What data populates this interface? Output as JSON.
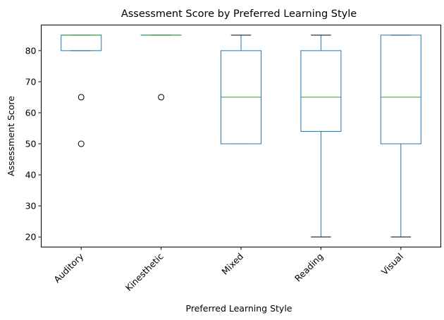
{
  "chart_data": {
    "type": "boxplot",
    "title": "Assessment Score by Preferred Learning Style",
    "xlabel": "Preferred Learning Style",
    "ylabel": "Assessment Score",
    "ylim": [
      16.75,
      88.25
    ],
    "yticks": [
      20,
      30,
      40,
      50,
      60,
      70,
      80
    ],
    "grid": false,
    "categories": [
      "Auditory",
      "Kinesthetic",
      "Mixed",
      "Reading",
      "Visual"
    ],
    "boxes": [
      {
        "category": "Auditory",
        "whislo": 80,
        "q1": 80,
        "med": 85,
        "q3": 85,
        "whishi": 85,
        "fliers": [
          65,
          50
        ]
      },
      {
        "category": "Kinesthetic",
        "whislo": 85,
        "q1": 85,
        "med": 85,
        "q3": 85,
        "whishi": 85,
        "fliers": [
          65
        ]
      },
      {
        "category": "Mixed",
        "whislo": 50,
        "q1": 50,
        "med": 65,
        "q3": 80,
        "whishi": 85,
        "fliers": []
      },
      {
        "category": "Reading",
        "whislo": 20,
        "q1": 54,
        "med": 65,
        "q3": 80,
        "whishi": 85,
        "fliers": []
      },
      {
        "category": "Visual",
        "whislo": 20,
        "q1": 50,
        "med": 65,
        "q3": 85,
        "whishi": 85,
        "fliers": []
      }
    ],
    "colors": {
      "box": "#1f77b4",
      "median": "#2ca02c",
      "whisker": "#1f77b4",
      "cap": "#000000",
      "flier": "#000000"
    }
  }
}
